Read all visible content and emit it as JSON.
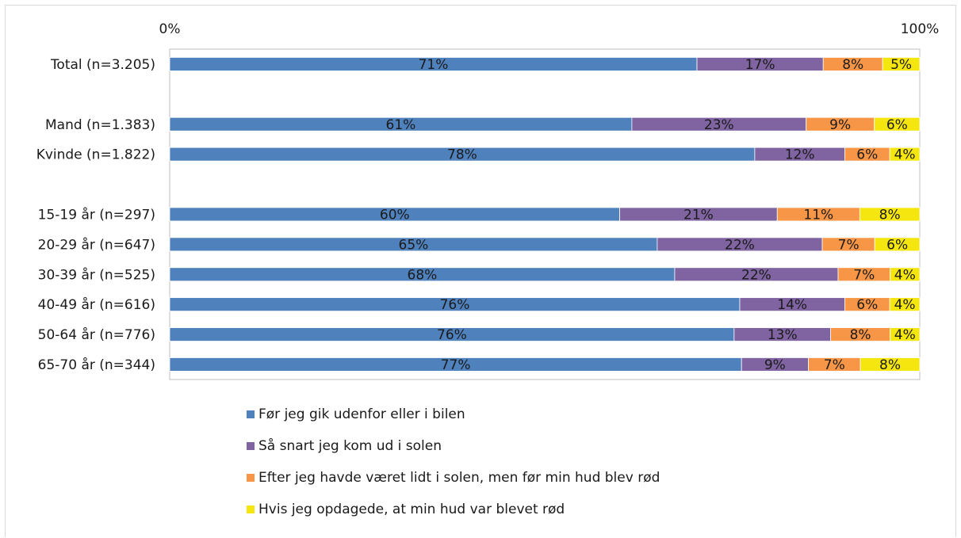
{
  "chart_data": {
    "type": "bar",
    "orientation": "horizontal",
    "stacked": "percent",
    "x_ticks": [
      "0%",
      "100%"
    ],
    "xlim": [
      0,
      100
    ],
    "grid": false,
    "legend_position": "bottom",
    "categories": [
      "Total (n=3.205)",
      "",
      "Mand (n=1.383)",
      "Kvinde (n=1.822)",
      "",
      "15-19 år (n=297)",
      "20-29 år (n=647)",
      "30-39 år (n=525)",
      "40-49 år (n=616)",
      "50-64 år (n=776)",
      "65-70 år (n=344)"
    ],
    "series": [
      {
        "name": "Før jeg gik udenfor eller i bilen",
        "color": "#4f81bd",
        "values": [
          71,
          null,
          61,
          78,
          null,
          60,
          65,
          68,
          76,
          76,
          77
        ]
      },
      {
        "name": "Så snart jeg kom ud i solen",
        "color": "#8064a2",
        "values": [
          17,
          null,
          23,
          12,
          null,
          21,
          22,
          22,
          14,
          13,
          9
        ]
      },
      {
        "name": "Efter jeg havde været lidt i solen, men før min hud blev rød",
        "color": "#f79646",
        "values": [
          8,
          null,
          9,
          6,
          null,
          11,
          7,
          7,
          6,
          8,
          7
        ]
      },
      {
        "name": "Hvis jeg opdagede, at min hud var blevet rød",
        "color": "#f5e60f",
        "values": [
          5,
          null,
          6,
          4,
          null,
          8,
          6,
          4,
          4,
          4,
          8
        ]
      }
    ]
  }
}
